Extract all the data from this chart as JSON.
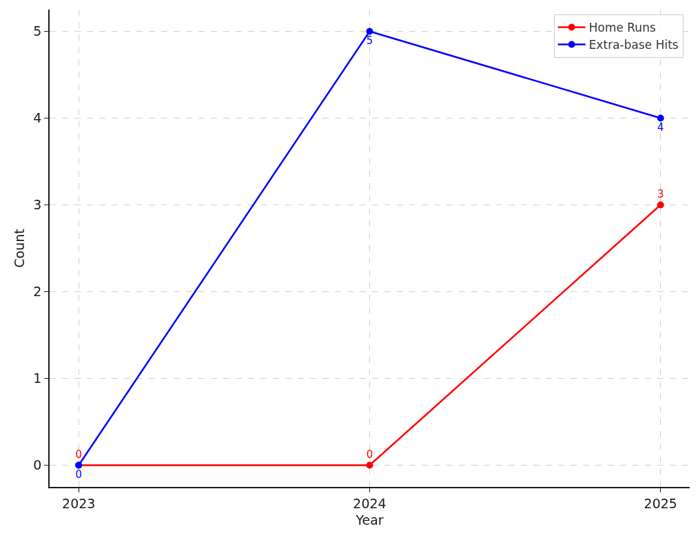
{
  "chart_data": {
    "type": "line",
    "xlabel": "Year",
    "ylabel": "Count",
    "x": [
      2023,
      2024,
      2025
    ],
    "series": [
      {
        "name": "Home Runs",
        "color": "#ff0000",
        "values": [
          0,
          0,
          3
        ]
      },
      {
        "name": "Extra-base Hits",
        "color": "#0000ff",
        "values": [
          0,
          5,
          4
        ]
      }
    ],
    "xlim": [
      2022.9,
      2025.1
    ],
    "xticks": [
      2023,
      2024,
      2025
    ],
    "ylim": [
      -0.25,
      5.25
    ],
    "yticks": [
      0,
      1,
      2,
      3,
      4,
      5
    ],
    "grid": true,
    "legend": "top right",
    "marker": "circle",
    "line_style": "solid",
    "data_labels": true
  }
}
